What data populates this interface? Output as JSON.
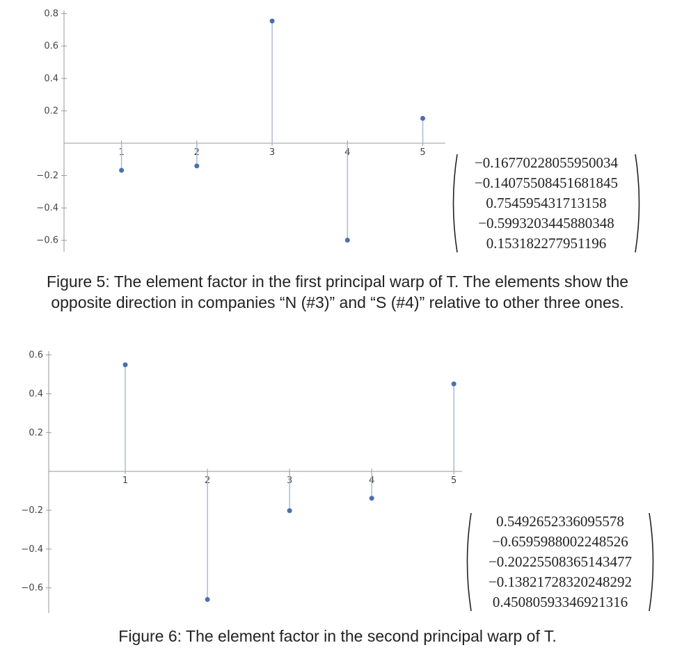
{
  "chart_data": [
    {
      "type": "stem",
      "title": "",
      "xlabel": "",
      "ylabel": "",
      "x": [
        1,
        2,
        3,
        4,
        5
      ],
      "values": [
        -0.1677,
        -0.1408,
        0.7546,
        -0.5993,
        0.1532
      ],
      "xlim": [
        0.2,
        5.3
      ],
      "ylim": [
        -0.67,
        0.82
      ],
      "xticks": [
        "1",
        "2",
        "3",
        "4",
        "5"
      ],
      "yticks": [
        {
          "value": 0.8,
          "label": "0.8"
        },
        {
          "value": 0.6,
          "label": "0.6"
        },
        {
          "value": 0.4,
          "label": "0.4"
        },
        {
          "value": 0.2,
          "label": "0.2"
        },
        {
          "value": -0.2,
          "label": "−0.2"
        },
        {
          "value": -0.4,
          "label": "−0.4"
        },
        {
          "value": -0.6,
          "label": "−0.6"
        }
      ],
      "grid": false,
      "color": "#4a6fb0",
      "stem_color": "#aabbd8"
    },
    {
      "type": "stem",
      "title": "",
      "xlabel": "",
      "ylabel": "",
      "x": [
        1,
        2,
        3,
        4,
        5
      ],
      "values": [
        0.5493,
        -0.6596,
        -0.2023,
        -0.1382,
        0.4508
      ],
      "xlim": [
        0.0,
        5.1
      ],
      "ylim": [
        -0.73,
        0.62
      ],
      "xticks": [
        "1",
        "2",
        "3",
        "4",
        "5"
      ],
      "yticks": [
        {
          "value": 0.6,
          "label": "0.6"
        },
        {
          "value": 0.4,
          "label": "0.4"
        },
        {
          "value": 0.2,
          "label": "0.2"
        },
        {
          "value": -0.2,
          "label": "−0.2"
        },
        {
          "value": -0.4,
          "label": "−0.4"
        },
        {
          "value": -0.6,
          "label": "−0.6"
        }
      ],
      "grid": false,
      "color": "#4a6fb0",
      "stem_color": "#aabbd8"
    }
  ],
  "matrices": [
    [
      "−0.16770228055950034",
      "−0.14075508451681845",
      "0.754595431713158",
      "−0.5993203445880348",
      "0.153182277951196"
    ],
    [
      "0.5492652336095578",
      "−0.6595988002248526",
      "−0.20225508365143477",
      "−0.13821728320248292",
      "0.45080593346921316"
    ]
  ],
  "captions": {
    "fig5_line1": "Figure 5: The element factor in the first principal warp of T. The elements show the",
    "fig5_line2": "opposite direction in companies “N (#3)” and “S (#4)” relative to other three ones.",
    "fig6": "Figure 6: The element factor in the second principal warp of T."
  }
}
